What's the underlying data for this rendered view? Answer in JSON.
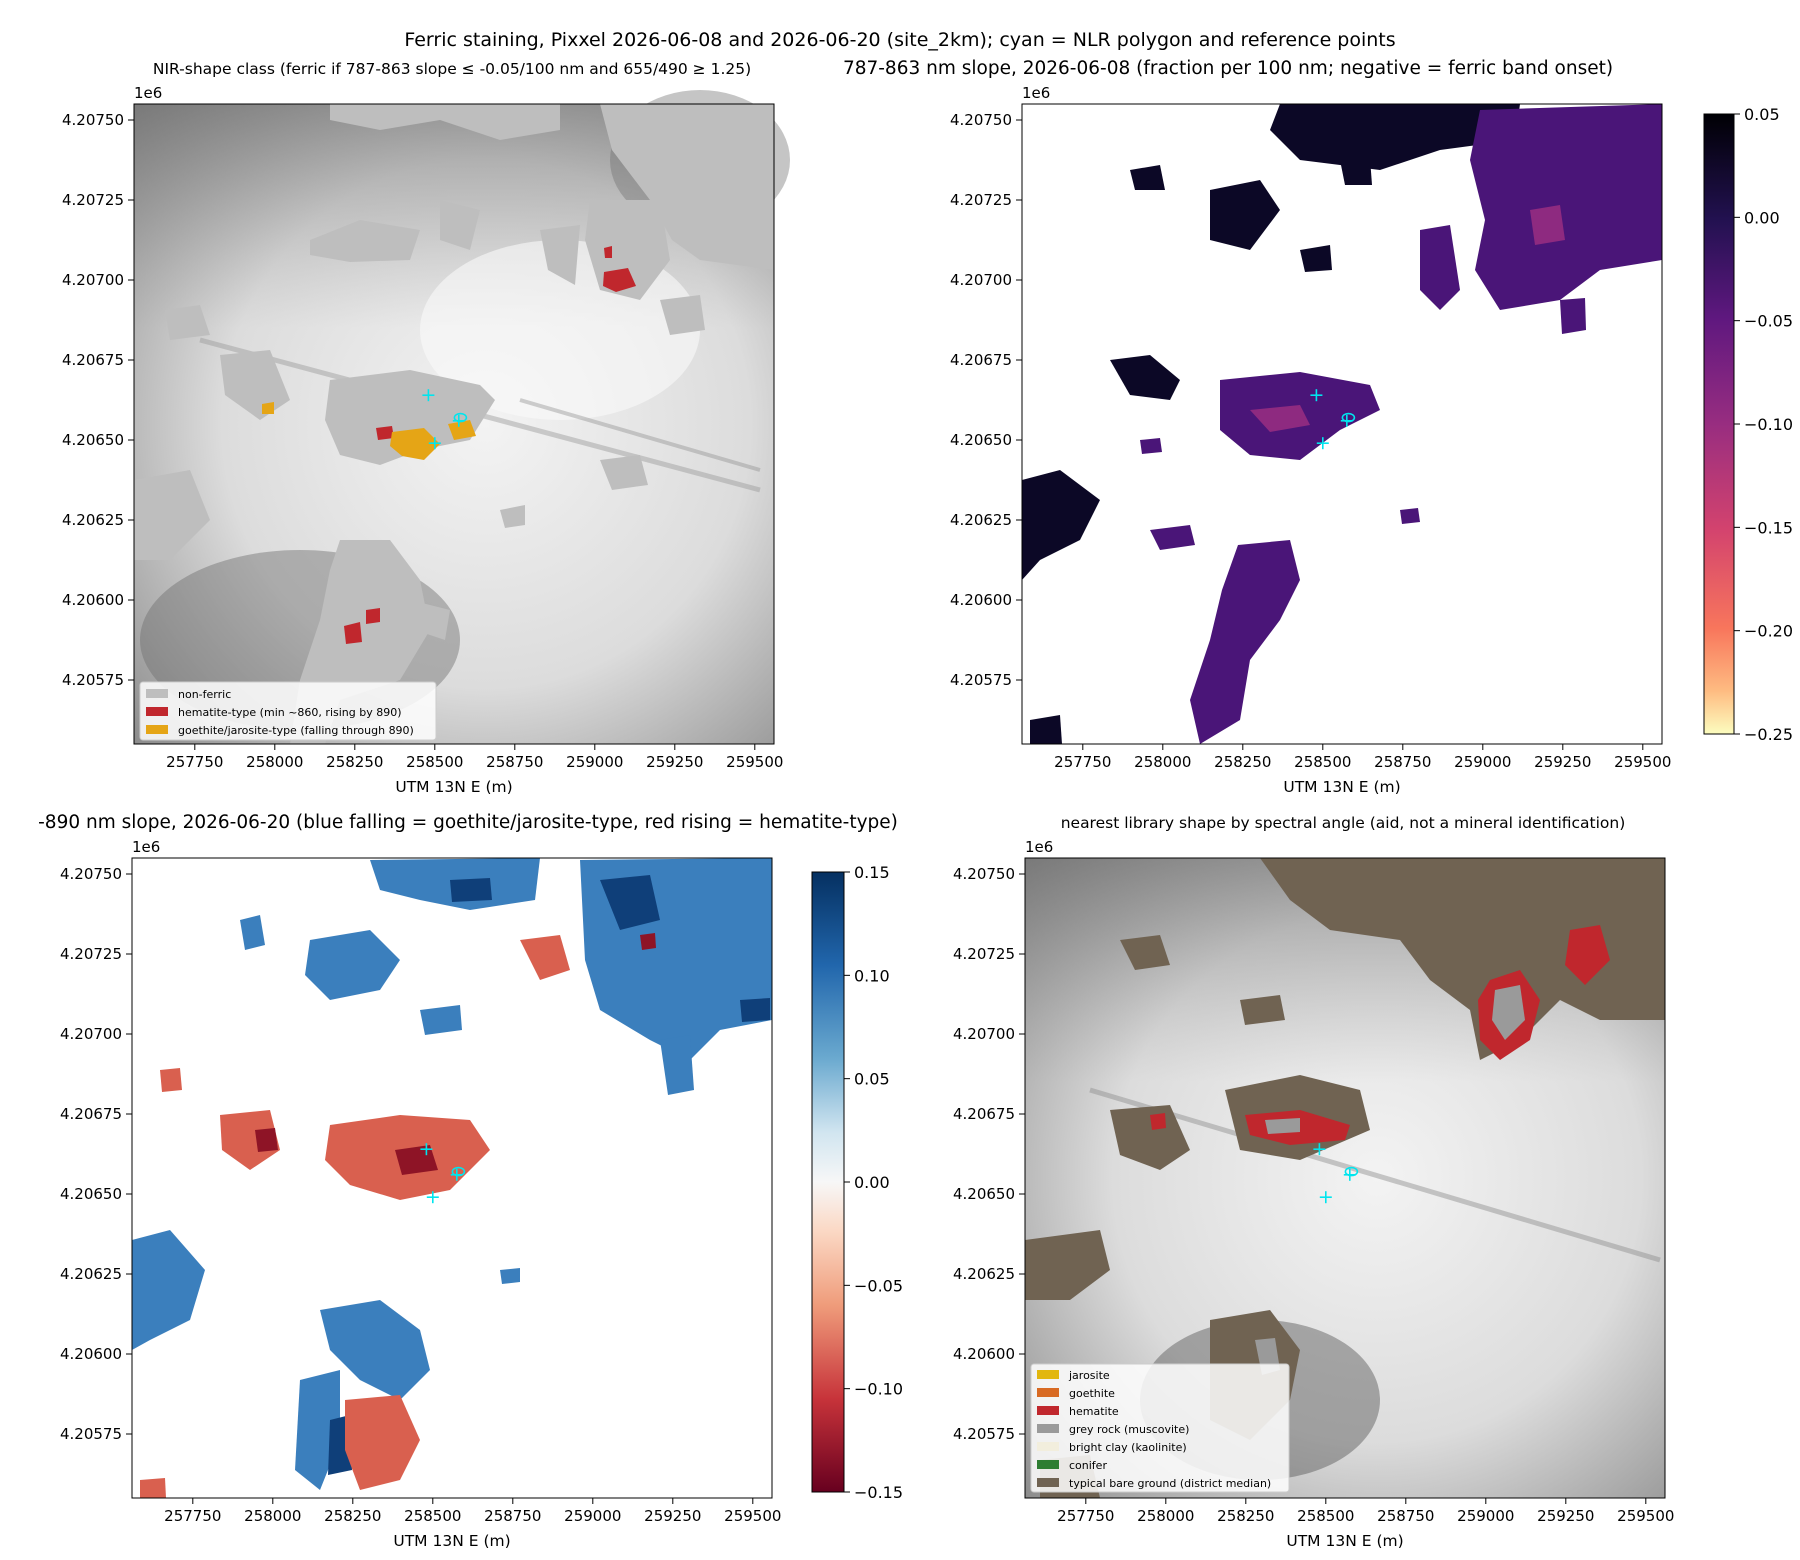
{
  "figure": {
    "suptitle": "Ferric staining, Pixxel 2026-06-08 and 2026-06-20 (site_2km); cyan = NLR polygon and reference points"
  },
  "colors": {
    "nonferric": "#bebebe",
    "hematite": "#c0272d",
    "goethite_jarosite": "#e5a516",
    "cyan": "#00e5ee",
    "bare_ground": "#706352",
    "grey_rock": "#9a9a9a"
  },
  "chart_data": [
    {
      "id": "class_map",
      "type": "heatmap",
      "title": "NIR-shape class (ferric if 787-863 slope ≤ -0.05/100 nm and 655/490 ≥ 1.25)",
      "xlabel": "UTM 13N E (m)",
      "ylabel": "",
      "y_offset_label": "1e6",
      "xlim": [
        257560,
        259560
      ],
      "ylim": [
        4.20555,
        4.20755
      ],
      "xticks": [
        257750,
        258000,
        258250,
        258500,
        258750,
        259000,
        259250,
        259500
      ],
      "xtick_labels": [
        "257750",
        "258000",
        "258250",
        "258500",
        "258750",
        "259000",
        "259250",
        "259500"
      ],
      "yticks": [
        4.20575,
        4.206,
        4.20625,
        4.2065,
        4.20675,
        4.207,
        4.20725,
        4.2075
      ],
      "ytick_labels": [
        "4.20575",
        "4.20600",
        "4.20625",
        "4.20650",
        "4.20675",
        "4.20700",
        "4.20725",
        "4.20750"
      ],
      "legend": {
        "placement": "lower-left",
        "entries": [
          {
            "label": "non-ferric",
            "color": "#bebebe"
          },
          {
            "label": "hematite-type (min ~860, rising by 890)",
            "color": "#c0272d"
          },
          {
            "label": "goethite/jarosite-type (falling through 890)",
            "color": "#e5a516"
          }
        ]
      }
    },
    {
      "id": "slope_787_863",
      "type": "heatmap",
      "title": "787-863 nm slope, 2026-06-08 (fraction per 100 nm; negative = ferric band onset)",
      "xlabel": "UTM 13N E (m)",
      "ylabel": "",
      "y_offset_label": "1e6",
      "xlim": [
        257560,
        259560
      ],
      "ylim": [
        4.20555,
        4.20755
      ],
      "xticks": [
        257750,
        258000,
        258250,
        258500,
        258750,
        259000,
        259250,
        259500
      ],
      "xtick_labels": [
        "257750",
        "258000",
        "258250",
        "258500",
        "258750",
        "259000",
        "259250",
        "259500"
      ],
      "yticks": [
        4.20575,
        4.206,
        4.20625,
        4.2065,
        4.20675,
        4.207,
        4.20725,
        4.2075
      ],
      "ytick_labels": [
        "4.20575",
        "4.20600",
        "4.20625",
        "4.20650",
        "4.20675",
        "4.20700",
        "4.20725",
        "4.20750"
      ],
      "colorbar": {
        "cmap": "magma",
        "range": [
          -0.25,
          0.05
        ],
        "ticks": [
          0.05,
          0.0,
          -0.05,
          -0.1,
          -0.15,
          -0.2,
          -0.25
        ],
        "tick_labels": [
          "0.05",
          "0.00",
          "−0.05",
          "−0.10",
          "−0.15",
          "−0.20",
          "−0.25"
        ]
      }
    },
    {
      "id": "slope_863_890",
      "type": "heatmap",
      "title": "-890 nm slope, 2026-06-20 (blue falling = goethite/jarosite-type, red rising = hematite-type)",
      "xlabel": "UTM 13N E (m)",
      "ylabel": "",
      "y_offset_label": "1e6",
      "xlim": [
        257560,
        259560
      ],
      "ylim": [
        4.20555,
        4.20755
      ],
      "xticks": [
        257750,
        258000,
        258250,
        258500,
        258750,
        259000,
        259250,
        259500
      ],
      "xtick_labels": [
        "257750",
        "258000",
        "258250",
        "258500",
        "258750",
        "259000",
        "259250",
        "259500"
      ],
      "yticks": [
        4.20575,
        4.206,
        4.20625,
        4.2065,
        4.20675,
        4.207,
        4.20725,
        4.2075
      ],
      "ytick_labels": [
        "4.20575",
        "4.20600",
        "4.20625",
        "4.20650",
        "4.20675",
        "4.20700",
        "4.20725",
        "4.20750"
      ],
      "colorbar": {
        "cmap": "RdBu",
        "range": [
          -0.15,
          0.15
        ],
        "ticks": [
          0.15,
          0.1,
          0.05,
          0.0,
          -0.05,
          -0.1,
          -0.15
        ],
        "tick_labels": [
          "0.15",
          "0.10",
          "0.05",
          "0.00",
          "−0.05",
          "−0.10",
          "−0.15"
        ]
      }
    },
    {
      "id": "library_match",
      "type": "heatmap",
      "title": "nearest library shape by spectral angle (aid, not a mineral identification)",
      "xlabel": "UTM 13N E (m)",
      "ylabel": "",
      "y_offset_label": "1e6",
      "xlim": [
        257560,
        259560
      ],
      "ylim": [
        4.20555,
        4.20755
      ],
      "xticks": [
        257750,
        258000,
        258250,
        258500,
        258750,
        259000,
        259250,
        259500
      ],
      "xtick_labels": [
        "257750",
        "258000",
        "258250",
        "258500",
        "258750",
        "259000",
        "259250",
        "259500"
      ],
      "yticks": [
        4.20575,
        4.206,
        4.20625,
        4.2065,
        4.20675,
        4.207,
        4.20725,
        4.2075
      ],
      "ytick_labels": [
        "4.20575",
        "4.20600",
        "4.20625",
        "4.20650",
        "4.20675",
        "4.20700",
        "4.20725",
        "4.20750"
      ],
      "legend": {
        "placement": "lower-left",
        "entries": [
          {
            "label": "jarosite",
            "color": "#e2b70f"
          },
          {
            "label": "goethite",
            "color": "#d86a23"
          },
          {
            "label": "hematite",
            "color": "#c0272d"
          },
          {
            "label": "grey rock (muscovite)",
            "color": "#9a9a9a"
          },
          {
            "label": "bright clay (kaolinite)",
            "color": "#f2eedd"
          },
          {
            "label": "conifer",
            "color": "#2e7d32"
          },
          {
            "label": "typical bare ground (district median)",
            "color": "#706352"
          }
        ]
      }
    }
  ],
  "reference_points": [
    {
      "x": 258480,
      "y": 4.20664
    },
    {
      "x": 258500,
      "y": 4.20649
    },
    {
      "x": 258575,
      "y": 4.20656
    }
  ]
}
